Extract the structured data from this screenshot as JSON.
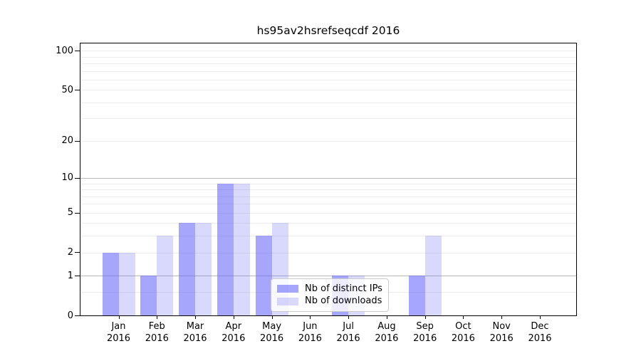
{
  "figure": {
    "title": "hs95av2hsrefseqcdf 2016"
  },
  "chart_data": {
    "type": "bar",
    "title": "hs95av2hsrefseqcdf 2016",
    "categories": [
      "Jan",
      "Feb",
      "Mar",
      "Apr",
      "May",
      "Jun",
      "Jul",
      "Aug",
      "Sep",
      "Oct",
      "Nov",
      "Dec"
    ],
    "category_sublabel": "2016",
    "series": [
      {
        "name": "Nb of distinct IPs",
        "values": [
          2,
          1,
          4,
          9,
          3,
          0,
          1,
          0,
          1,
          0,
          0,
          0
        ],
        "color": "rgba(102,102,250,0.58)",
        "color_on_white": "#a6a6fa"
      },
      {
        "name": "Nb of downloads",
        "values": [
          2,
          3,
          4,
          9,
          4,
          0,
          1,
          0,
          3,
          0,
          0,
          0
        ],
        "color": "rgba(102,102,250,0.25)",
        "color_on_white": "#d9d9fa"
      }
    ],
    "xlabel": "",
    "ylabel": "",
    "grid": true,
    "y_axis": {
      "scale": "log1p",
      "ylim": [
        0,
        115
      ],
      "ticks": [
        0,
        1,
        2,
        5,
        10,
        20,
        50,
        100
      ],
      "minor_ticks": [
        0.5,
        3,
        4,
        6,
        7,
        8,
        9,
        30,
        40,
        60,
        70,
        80,
        90
      ],
      "emphasized_gridlines": [
        1,
        10
      ]
    },
    "legend_position": "inside-bottom-center"
  },
  "legend": {
    "items": [
      {
        "label": "Nb of distinct IPs"
      },
      {
        "label": "Nb of downloads"
      }
    ]
  },
  "colors": {
    "background": "#ffffff",
    "axis": "#000000",
    "grid_regular": "#ececec",
    "grid_emphasized": "#b8b8b8",
    "legend_border": "#cccccc",
    "bar_distinct_ips": "#a6a6fa",
    "bar_downloads": "#d9d9fa"
  }
}
